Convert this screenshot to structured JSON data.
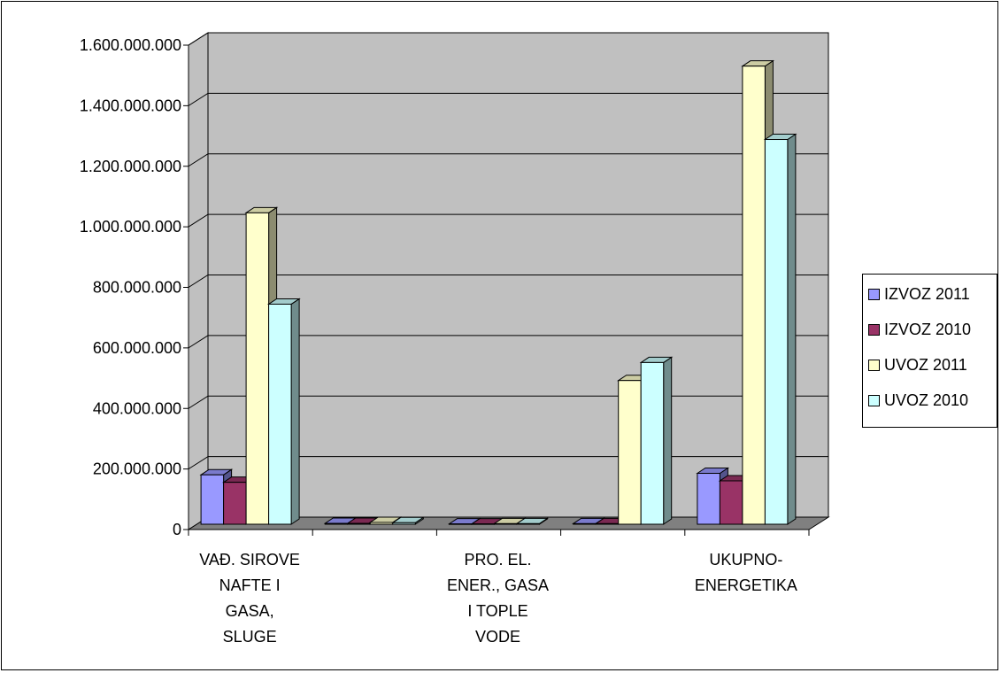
{
  "chart_data": {
    "type": "bar",
    "style": "3d-clustered-column",
    "categories": [
      [
        "VAĐ. SIROVE",
        "NAFTE I",
        "GASA,",
        "SLUGE"
      ],
      [],
      [
        "PRO. EL.",
        "ENER., GASA",
        "I TOPLE",
        "VODE"
      ],
      [],
      [
        "UKUPNO-",
        "ENERGETIKA"
      ]
    ],
    "series": [
      {
        "name": "IZVOZ 2011",
        "color": "#9999ff",
        "values": [
          165000000,
          3000000,
          1000000,
          2000000,
          170000000
        ]
      },
      {
        "name": "IZVOZ 2010",
        "color": "#993366",
        "values": [
          140000000,
          3000000,
          1000000,
          2000000,
          145000000
        ]
      },
      {
        "name": "UVOZ 2011",
        "color": "#ffffcc",
        "values": [
          1040000000,
          6000000,
          2000000,
          480000000,
          1530000000
        ]
      },
      {
        "name": "UVOZ 2010",
        "color": "#ccffff",
        "values": [
          735000000,
          5000000,
          2000000,
          540000000,
          1285000000
        ]
      }
    ],
    "yticks": [
      "0",
      "200.000.000",
      "400.000.000",
      "600.000.000",
      "800.000.000",
      "1.000.000.000",
      "1.200.000.000",
      "1.400.000.000",
      "1.600.000.000"
    ],
    "ylim": [
      0,
      1600000000
    ],
    "grid": true,
    "legend_position": "right",
    "wall_color": "#c0c0c0",
    "floor_color": "#808080"
  }
}
